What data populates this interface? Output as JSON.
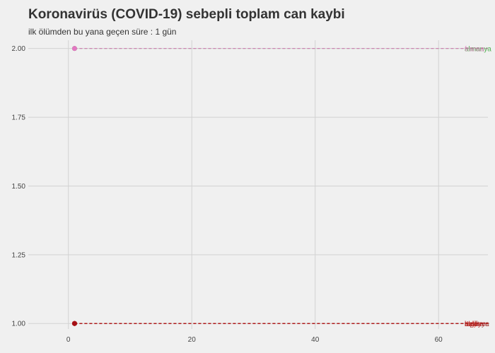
{
  "chart_data": {
    "type": "line",
    "title": "Koronavirüs (COVID-19) sebepli toplam can kaybi",
    "subtitle": "ilk ölümden bu yana geçen süre : 1 gün",
    "xlabel": "",
    "ylabel": "",
    "xlim": [
      -6.5,
      68
    ],
    "ylim": [
      0.98,
      2.03
    ],
    "x_ticks": [
      0,
      20,
      40,
      60
    ],
    "y_ticks": [
      1.0,
      1.25,
      1.5,
      1.75,
      2.0
    ],
    "y_tick_labels": [
      "1.00",
      "1.25",
      "1.50",
      "1.75",
      "2.00"
    ],
    "grid": true,
    "legend": "none",
    "series": [
      {
        "name": "ispanya",
        "color": "#8a3b2e",
        "x": [
          1
        ],
        "y": [
          1
        ]
      },
      {
        "name": "iran",
        "color": "#d62728",
        "x": [
          1
        ],
        "y": [
          1
        ]
      },
      {
        "name": "italya",
        "color": "#e8453c",
        "x": [
          1
        ],
        "y": [
          1
        ]
      },
      {
        "name": "ingiltere",
        "color": "#b22222",
        "x": [
          1
        ],
        "y": [
          1
        ]
      },
      {
        "name": "abd",
        "color": "#c0392b",
        "x": [
          1
        ],
        "y": [
          1
        ]
      },
      {
        "name": "türkiye",
        "color": "#a50f15",
        "x": [
          1
        ],
        "y": [
          1
        ]
      },
      {
        "name": "almanya",
        "color": "#2ca02c",
        "x": [
          1
        ],
        "y": [
          2
        ]
      },
      {
        "name": "fransa",
        "color": "#e377c2",
        "x": [
          1
        ],
        "y": [
          2
        ]
      }
    ]
  }
}
